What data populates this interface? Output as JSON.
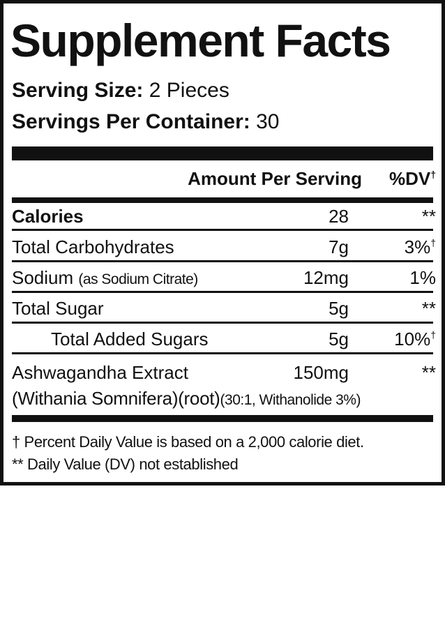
{
  "title": "Supplement Facts",
  "serving_size": {
    "label": "Serving Size:",
    "value": "2 Pieces"
  },
  "servings_per_container": {
    "label": "Servings Per Container:",
    "value": "30"
  },
  "header": {
    "amount": "Amount Per Serving",
    "dv": "%DV",
    "dv_mark": "†"
  },
  "rows": [
    {
      "name": "Calories",
      "amount": "28",
      "dv": "**"
    },
    {
      "name": "Total Carbohydrates",
      "amount": "7g",
      "dv": "3%",
      "dv_mark": "†"
    },
    {
      "name": "Sodium",
      "note": "(as Sodium Citrate)",
      "amount": "12mg",
      "dv": "1%"
    },
    {
      "name": "Total Sugar",
      "amount": "5g",
      "dv": "**"
    },
    {
      "name": "Total Added Sugars",
      "amount": "5g",
      "dv": "10%",
      "dv_mark": "†"
    },
    {
      "name": "Ashwagandha Extract",
      "detail": "(Withania Somnifera)(root)",
      "note": "(30:1, Withanolide 3%)",
      "amount": "150mg",
      "dv": "**"
    }
  ],
  "footnotes": [
    "† Percent Daily Value is based on a 2,000 calorie diet.",
    "** Daily Value (DV) not established"
  ]
}
